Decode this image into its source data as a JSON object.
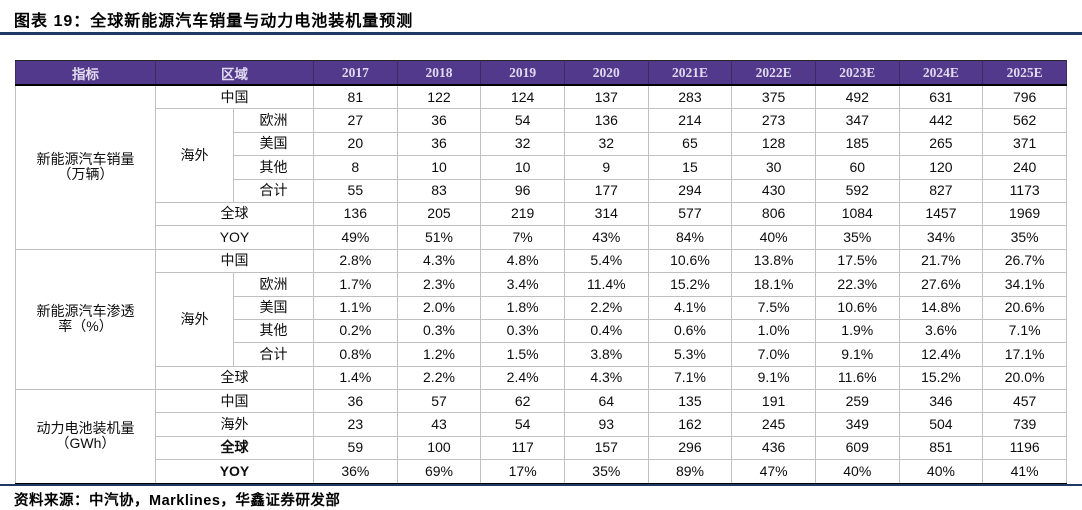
{
  "page": {
    "title": "图表 19：全球新能源汽车销量与动力电池装机量预测",
    "source": "资料来源：中汽协，Marklines，华鑫证券研发部",
    "colors": {
      "header_purple": "#53398B",
      "header_text": "#E0DAEF",
      "rule_navy": "#1F3864",
      "grid_gray": "#C0C0C0"
    }
  },
  "table": {
    "header": {
      "indicator": "指标",
      "region": "区域",
      "years": [
        "2017",
        "2018",
        "2019",
        "2020",
        "2021E",
        "2022E",
        "2023E",
        "2024E",
        "2025E"
      ]
    },
    "groups": [
      {
        "label": "新能源汽车销量\n（万辆）",
        "overseas_label": "海外",
        "overseas_span": 4,
        "rows": [
          {
            "label": "中国",
            "type": "full",
            "bold": false,
            "values": [
              "81",
              "122",
              "124",
              "137",
              "283",
              "375",
              "492",
              "631",
              "796"
            ]
          },
          {
            "label": "欧洲",
            "type": "overseas-first",
            "bold": false,
            "values": [
              "27",
              "36",
              "54",
              "136",
              "214",
              "273",
              "347",
              "442",
              "562"
            ]
          },
          {
            "label": "美国",
            "type": "overseas-sub",
            "bold": false,
            "values": [
              "20",
              "36",
              "32",
              "32",
              "65",
              "128",
              "185",
              "265",
              "371"
            ]
          },
          {
            "label": "其他",
            "type": "overseas-sub",
            "bold": false,
            "values": [
              "8",
              "10",
              "10",
              "9",
              "15",
              "30",
              "60",
              "120",
              "240"
            ]
          },
          {
            "label": "合计",
            "type": "overseas-sub",
            "bold": false,
            "values": [
              "55",
              "83",
              "96",
              "177",
              "294",
              "430",
              "592",
              "827",
              "1173"
            ]
          },
          {
            "label": "全球",
            "type": "full",
            "bold": false,
            "values": [
              "136",
              "205",
              "219",
              "314",
              "577",
              "806",
              "1084",
              "1457",
              "1969"
            ]
          },
          {
            "label": "YOY",
            "type": "full",
            "bold": false,
            "values": [
              "49%",
              "51%",
              "7%",
              "43%",
              "84%",
              "40%",
              "35%",
              "34%",
              "35%"
            ]
          }
        ]
      },
      {
        "label": "新能源汽车渗透\n率（%）",
        "overseas_label": "海外",
        "overseas_span": 4,
        "rows": [
          {
            "label": "中国",
            "type": "full",
            "bold": false,
            "values": [
              "2.8%",
              "4.3%",
              "4.8%",
              "5.4%",
              "10.6%",
              "13.8%",
              "17.5%",
              "21.7%",
              "26.7%"
            ]
          },
          {
            "label": "欧洲",
            "type": "overseas-first",
            "bold": false,
            "values": [
              "1.7%",
              "2.3%",
              "3.4%",
              "11.4%",
              "15.2%",
              "18.1%",
              "22.3%",
              "27.6%",
              "34.1%"
            ]
          },
          {
            "label": "美国",
            "type": "overseas-sub",
            "bold": false,
            "values": [
              "1.1%",
              "2.0%",
              "1.8%",
              "2.2%",
              "4.1%",
              "7.5%",
              "10.6%",
              "14.8%",
              "20.6%"
            ]
          },
          {
            "label": "其他",
            "type": "overseas-sub",
            "bold": false,
            "values": [
              "0.2%",
              "0.3%",
              "0.3%",
              "0.4%",
              "0.6%",
              "1.0%",
              "1.9%",
              "3.6%",
              "7.1%"
            ]
          },
          {
            "label": "合计",
            "type": "overseas-sub",
            "bold": false,
            "values": [
              "0.8%",
              "1.2%",
              "1.5%",
              "3.8%",
              "5.3%",
              "7.0%",
              "9.1%",
              "12.4%",
              "17.1%"
            ]
          },
          {
            "label": "全球",
            "type": "full",
            "bold": false,
            "values": [
              "1.4%",
              "2.2%",
              "2.4%",
              "4.3%",
              "7.1%",
              "9.1%",
              "11.6%",
              "15.2%",
              "20.0%"
            ]
          }
        ]
      },
      {
        "label": "动力电池装机量\n（GWh）",
        "overseas_label": "",
        "overseas_span": 0,
        "rows": [
          {
            "label": "中国",
            "type": "full",
            "bold": false,
            "values": [
              "36",
              "57",
              "62",
              "64",
              "135",
              "191",
              "259",
              "346",
              "457"
            ]
          },
          {
            "label": "海外",
            "type": "full",
            "bold": false,
            "values": [
              "23",
              "43",
              "54",
              "93",
              "162",
              "245",
              "349",
              "504",
              "739"
            ]
          },
          {
            "label": "全球",
            "type": "full",
            "bold": true,
            "values": [
              "59",
              "100",
              "117",
              "157",
              "296",
              "436",
              "609",
              "851",
              "1196"
            ]
          },
          {
            "label": "YOY",
            "type": "full",
            "bold": true,
            "values": [
              "36%",
              "69%",
              "17%",
              "35%",
              "89%",
              "47%",
              "40%",
              "40%",
              "41%"
            ]
          }
        ]
      }
    ]
  }
}
